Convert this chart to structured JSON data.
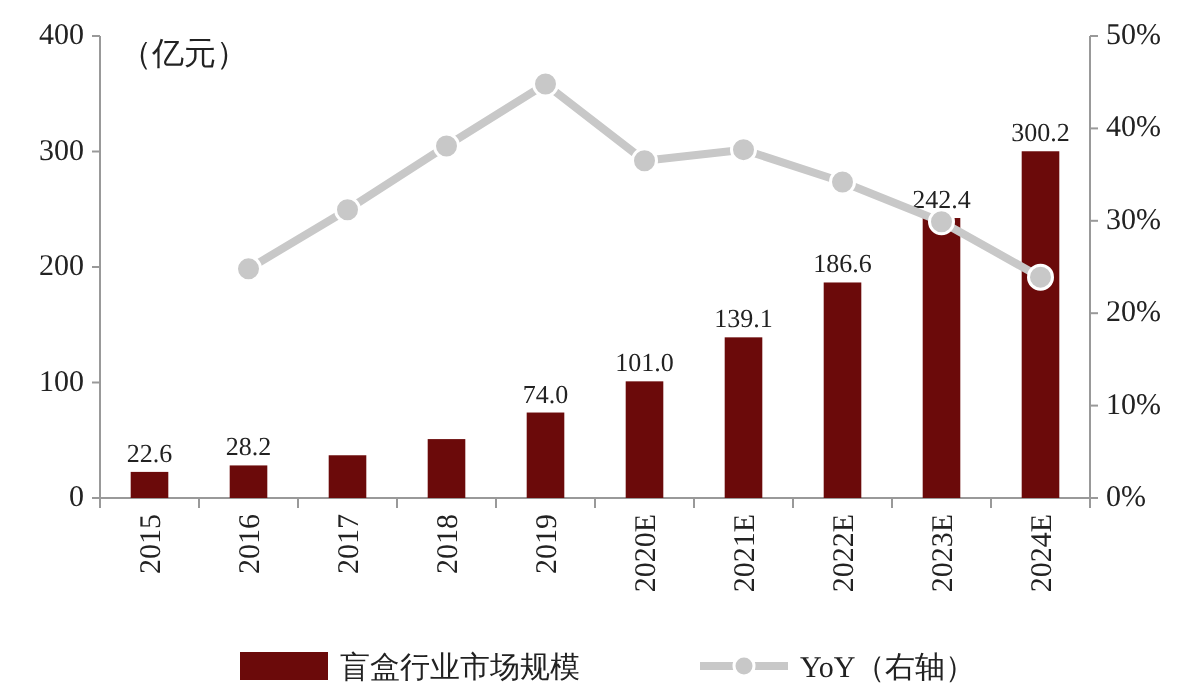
{
  "chart_data": {
    "type": "bar",
    "categories": [
      "2015",
      "2016",
      "2017",
      "2018",
      "2019",
      "2020E",
      "2021E",
      "2022E",
      "2023E",
      "2024E"
    ],
    "series": [
      {
        "name": "盲盒行业市场规模",
        "color": "#6b0a0a",
        "values": [
          22.6,
          28.2,
          37,
          51,
          74.0,
          101.0,
          139.1,
          186.6,
          242.4,
          300.2
        ],
        "value_labels": [
          "22.6",
          "28.2",
          null,
          null,
          "74.0",
          "101.0",
          "139.1",
          "186.6",
          "242.4",
          "300.2"
        ]
      },
      {
        "name": "YoY（右轴）",
        "type": "line",
        "axis": "y2",
        "color": "#c8c8c8",
        "marker": "circle",
        "values": [
          null,
          24.8,
          31.2,
          38.1,
          44.8,
          36.5,
          37.7,
          34.2,
          29.9,
          23.9
        ]
      }
    ],
    "ylim": [
      0,
      400
    ],
    "yticks": [
      0,
      100,
      200,
      300,
      400
    ],
    "y2lim": [
      0,
      50
    ],
    "y2ticks": [
      {
        "value": 0,
        "label": "0%"
      },
      {
        "value": 10,
        "label": "10%"
      },
      {
        "value": 20,
        "label": "20%"
      },
      {
        "value": 30,
        "label": "30%"
      },
      {
        "value": 40,
        "label": "40%"
      },
      {
        "value": 50,
        "label": "50%"
      }
    ],
    "annotations": [
      "（亿元）"
    ],
    "legend": "bottom",
    "grid": false
  }
}
